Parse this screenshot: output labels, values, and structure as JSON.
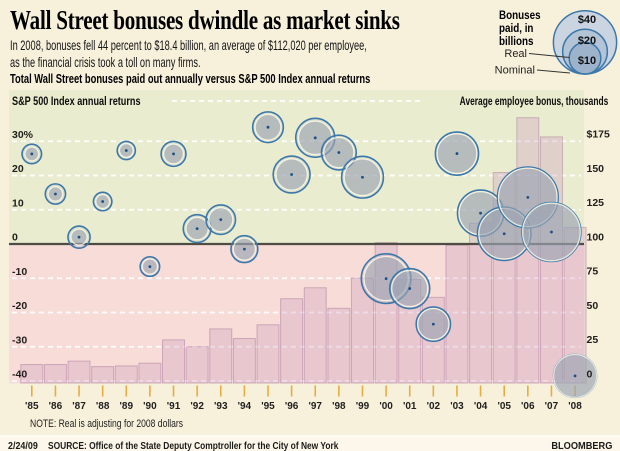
{
  "header": {
    "title": "Wall Street bonuses dwindle as market sinks",
    "subtitle_line1": "In 2008, bonuses fell 44 percent to $18.4 billion, an average of $112,020 per employee,",
    "subtitle_line2": "as the financial crisis took a toll on many firms.",
    "deck": "Total Wall Street bonuses paid out annually versus S&P 500 Index annual returns"
  },
  "legend": {
    "title_lines": [
      "Bonuses",
      "paid, in",
      "billions"
    ],
    "sizes": [
      {
        "label": "$40",
        "value": 40
      },
      {
        "label": "$20",
        "value": 20
      },
      {
        "label": "$10",
        "value": 10
      }
    ],
    "real_label": "Real",
    "nominal_label": "Nominal"
  },
  "chart_data": {
    "type": "combo bar + bubble (dual axis)",
    "title": "Total Wall Street bonuses paid out annually versus S&P 500 Index annual returns",
    "note": "NOTE: Real is adjusting for 2008 dollars",
    "left_axis": {
      "label": "S&P 500 Index annual returns",
      "tick_labels": [
        "30%",
        "20",
        "10",
        "0",
        "-10",
        "-20",
        "-30",
        "-40"
      ],
      "values": [
        30,
        20,
        10,
        0,
        -10,
        -20,
        -30,
        -40
      ]
    },
    "right_axis": {
      "label": "Average employee bonus, thousands",
      "tick_labels": [
        "$175",
        "150",
        "125",
        "100",
        "75",
        "50",
        "25",
        "0"
      ],
      "values": [
        175,
        150,
        125,
        100,
        75,
        50,
        25,
        0
      ]
    },
    "years": [
      "'85",
      "'86",
      "'87",
      "'88",
      "'89",
      "'90",
      "'91",
      "'92",
      "'93",
      "'94",
      "'95",
      "'96",
      "'97",
      "'98",
      "'99",
      "'00",
      "'01",
      "'02",
      "'03",
      "'04",
      "'05",
      "'06",
      "'07",
      "'08"
    ],
    "bars": {
      "name": "Average employee bonus, thousands of dollars",
      "values": [
        12,
        12,
        14.5,
        10.5,
        11,
        13,
        30,
        25,
        38,
        31,
        41,
        60,
        68,
        53,
        75,
        101,
        74,
        61,
        99,
        115,
        152,
        192,
        178,
        112
      ]
    },
    "sp_returns": {
      "name": "S&P 500 Index annual return, percent",
      "values": [
        26.3,
        14.6,
        2.0,
        12.4,
        27.3,
        -6.6,
        26.3,
        4.5,
        7.1,
        -1.5,
        34.1,
        20.3,
        31.0,
        26.7,
        19.5,
        -10.1,
        -13.0,
        -23.4,
        26.4,
        9.0,
        3.0,
        13.6,
        3.5,
        -38.5
      ]
    },
    "bonuses_nominal_bn": {
      "name": "Bonuses paid, nominal, billions of dollars",
      "values": [
        1.9,
        2.1,
        2.6,
        1.9,
        1.9,
        2.3,
        3.9,
        5.0,
        5.8,
        4.9,
        6.6,
        9.8,
        11.2,
        9.1,
        13.4,
        19.5,
        13.0,
        9.8,
        15.8,
        18.6,
        25.7,
        34.3,
        33.2,
        18.4
      ]
    },
    "bonuses_real_bn": {
      "name": "Bonuses paid, real 2008 dollars, billions",
      "values": [
        3.8,
        4.1,
        4.9,
        3.4,
        3.3,
        3.8,
        6.2,
        7.7,
        8.7,
        7.2,
        9.4,
        13.6,
        15.2,
        12.1,
        17.5,
        24.6,
        16.0,
        11.8,
        18.6,
        21.3,
        28.5,
        36.9,
        34.7,
        18.4
      ]
    }
  },
  "footer": {
    "date": "2/24/09",
    "source": "SOURCE: Office of the State Deputy Comptroller for the City of New York",
    "brand": "BLOOMBERG"
  },
  "colors": {
    "page_bg": "#f7f1dc",
    "positive_bg": "#eaeccf",
    "negative_bg": "#f8dcd7",
    "bar_fill": "rgba(203,158,192,0.34)",
    "bar_stroke": "rgba(158,106,148,0.42)",
    "real_stroke": "#3c78a9",
    "real_fill": "rgba(116,144,185,0.14)",
    "nominal_fill": "rgba(159,166,177,0.62)",
    "nominal_stroke": "rgba(252,248,230,0.85)",
    "center_dot": "#1d4f86",
    "gridline": "#ffffff",
    "zero_line": "#4f4b45",
    "tick": "#e7ac3f",
    "legend_fills": [
      "#cbd5e2",
      "#b3c4d7",
      "#9db3cb"
    ],
    "footer_bg": "#fcf7ea"
  }
}
